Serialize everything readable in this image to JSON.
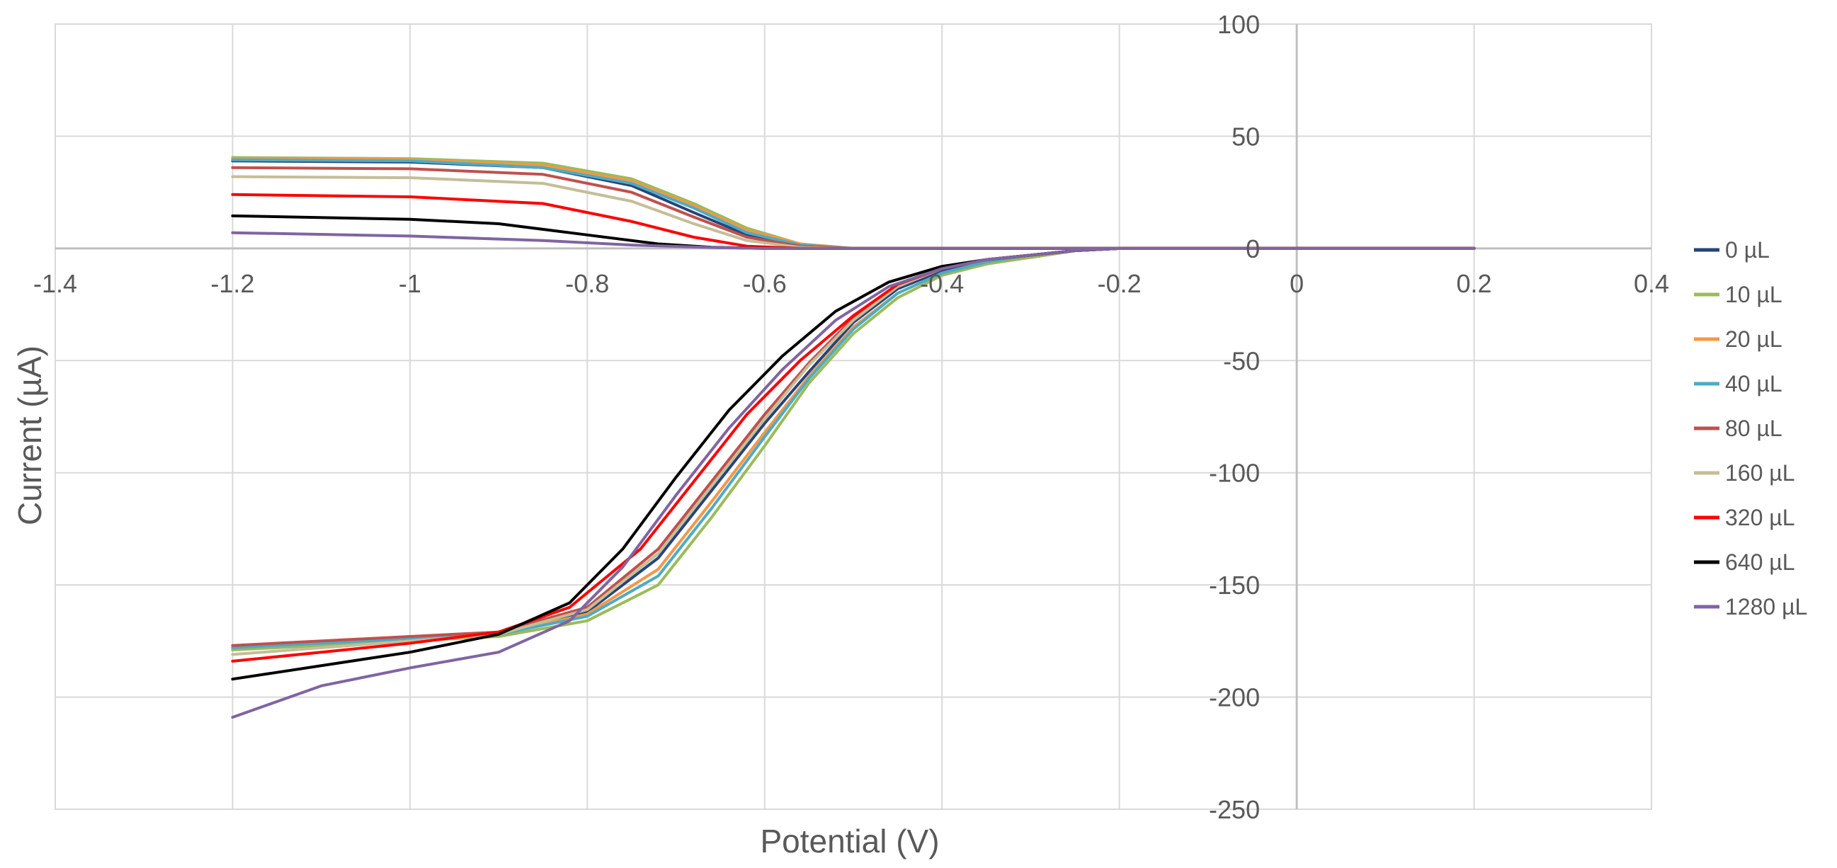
{
  "chart_data": {
    "type": "line",
    "title": "",
    "xlabel": "Potential (V)",
    "ylabel": "Current (µA)",
    "xlim": [
      -1.4,
      0.4
    ],
    "ylim": [
      -250,
      100
    ],
    "x_ticks": [
      -1.4,
      -1.2,
      -1,
      -0.8,
      -0.6,
      -0.4,
      -0.2,
      0,
      0.2,
      0.4
    ],
    "x_tick_labels": [
      "-1.4",
      "-1.2",
      "-1",
      "-0.8",
      "-0.6",
      "-0.4",
      "-0.2",
      "0",
      "0.2",
      "0.4"
    ],
    "y_ticks": [
      100,
      50,
      0,
      -50,
      -100,
      -150,
      -200,
      -250
    ],
    "y_tick_labels": [
      "100",
      "50",
      "0",
      "-50",
      "-100",
      "-150",
      "-200",
      "-250"
    ],
    "grid": true,
    "legend_position": "right",
    "series": [
      {
        "name": "0 µL",
        "color": "#264478",
        "upper": [
          [
            -1.2,
            39
          ],
          [
            -1.0,
            38.5
          ],
          [
            -0.85,
            36
          ],
          [
            -0.75,
            28
          ],
          [
            -0.68,
            16
          ],
          [
            -0.62,
            6
          ],
          [
            -0.56,
            1
          ],
          [
            -0.5,
            0
          ],
          [
            0.2,
            0
          ]
        ],
        "lower": [
          [
            -1.2,
            -178
          ],
          [
            -1.0,
            -174
          ],
          [
            -0.9,
            -172
          ],
          [
            -0.8,
            -162
          ],
          [
            -0.72,
            -138
          ],
          [
            -0.66,
            -108
          ],
          [
            -0.6,
            -78
          ],
          [
            -0.55,
            -55
          ],
          [
            -0.5,
            -33
          ],
          [
            -0.45,
            -18
          ],
          [
            -0.4,
            -10
          ],
          [
            -0.35,
            -6
          ],
          [
            -0.3,
            -4
          ],
          [
            -0.25,
            -1
          ],
          [
            -0.2,
            0
          ],
          [
            0.2,
            0
          ]
        ]
      },
      {
        "name": "10 µL",
        "color": "#9BBB59",
        "upper": [
          [
            -1.2,
            40.5
          ],
          [
            -1.0,
            40
          ],
          [
            -0.85,
            38
          ],
          [
            -0.75,
            31
          ],
          [
            -0.68,
            20
          ],
          [
            -0.62,
            9
          ],
          [
            -0.56,
            2
          ],
          [
            -0.5,
            0
          ],
          [
            0.2,
            0
          ]
        ],
        "lower": [
          [
            -1.2,
            -179
          ],
          [
            -1.0,
            -175
          ],
          [
            -0.9,
            -173
          ],
          [
            -0.8,
            -166
          ],
          [
            -0.72,
            -150
          ],
          [
            -0.66,
            -120
          ],
          [
            -0.6,
            -88
          ],
          [
            -0.55,
            -60
          ],
          [
            -0.5,
            -38
          ],
          [
            -0.45,
            -22
          ],
          [
            -0.4,
            -12
          ],
          [
            -0.35,
            -7
          ],
          [
            -0.3,
            -4
          ],
          [
            -0.25,
            -1
          ],
          [
            -0.2,
            0
          ],
          [
            0.2,
            0
          ]
        ]
      },
      {
        "name": "20 µL",
        "color": "#F79646",
        "upper": [
          [
            -1.2,
            40
          ],
          [
            -1.0,
            39.5
          ],
          [
            -0.85,
            37
          ],
          [
            -0.75,
            30
          ],
          [
            -0.68,
            19
          ],
          [
            -0.62,
            8
          ],
          [
            -0.56,
            2
          ],
          [
            -0.5,
            0
          ],
          [
            0.2,
            0
          ]
        ],
        "lower": [
          [
            -1.2,
            -178
          ],
          [
            -1.0,
            -174
          ],
          [
            -0.9,
            -172
          ],
          [
            -0.8,
            -163
          ],
          [
            -0.72,
            -143
          ],
          [
            -0.66,
            -113
          ],
          [
            -0.6,
            -82
          ],
          [
            -0.55,
            -57
          ],
          [
            -0.5,
            -35
          ],
          [
            -0.45,
            -20
          ],
          [
            -0.4,
            -11
          ],
          [
            -0.35,
            -6
          ],
          [
            -0.3,
            -3
          ],
          [
            -0.25,
            -1
          ],
          [
            -0.2,
            0
          ],
          [
            0.2,
            0
          ]
        ]
      },
      {
        "name": "40 µL",
        "color": "#4BACC6",
        "upper": [
          [
            -1.2,
            39.5
          ],
          [
            -1.0,
            39
          ],
          [
            -0.85,
            36
          ],
          [
            -0.75,
            29
          ],
          [
            -0.68,
            18
          ],
          [
            -0.62,
            7
          ],
          [
            -0.56,
            1.5
          ],
          [
            -0.5,
            0
          ],
          [
            0.2,
            0
          ]
        ],
        "lower": [
          [
            -1.2,
            -178
          ],
          [
            -1.0,
            -174
          ],
          [
            -0.9,
            -172
          ],
          [
            -0.8,
            -164
          ],
          [
            -0.72,
            -146
          ],
          [
            -0.66,
            -116
          ],
          [
            -0.6,
            -84
          ],
          [
            -0.55,
            -58
          ],
          [
            -0.5,
            -36
          ],
          [
            -0.45,
            -20
          ],
          [
            -0.4,
            -11
          ],
          [
            -0.35,
            -6
          ],
          [
            -0.3,
            -3
          ],
          [
            -0.25,
            -1
          ],
          [
            -0.2,
            0
          ],
          [
            0.2,
            0
          ]
        ]
      },
      {
        "name": "80 µL",
        "color": "#C0504D",
        "upper": [
          [
            -1.2,
            36
          ],
          [
            -1.0,
            35.5
          ],
          [
            -0.85,
            33
          ],
          [
            -0.75,
            25
          ],
          [
            -0.68,
            14
          ],
          [
            -0.62,
            5
          ],
          [
            -0.56,
            1
          ],
          [
            -0.5,
            0
          ],
          [
            0.2,
            0
          ]
        ],
        "lower": [
          [
            -1.2,
            -177
          ],
          [
            -1.0,
            -173
          ],
          [
            -0.9,
            -171
          ],
          [
            -0.8,
            -160
          ],
          [
            -0.72,
            -134
          ],
          [
            -0.66,
            -104
          ],
          [
            -0.6,
            -74
          ],
          [
            -0.55,
            -51
          ],
          [
            -0.5,
            -31
          ],
          [
            -0.45,
            -17
          ],
          [
            -0.4,
            -9
          ],
          [
            -0.35,
            -5
          ],
          [
            -0.3,
            -3
          ],
          [
            -0.25,
            -1
          ],
          [
            -0.2,
            0
          ],
          [
            0.2,
            0
          ]
        ]
      },
      {
        "name": "160 µL",
        "color": "#C4BD97",
        "upper": [
          [
            -1.2,
            32
          ],
          [
            -1.0,
            31.5
          ],
          [
            -0.85,
            29
          ],
          [
            -0.75,
            21
          ],
          [
            -0.68,
            11
          ],
          [
            -0.62,
            3.5
          ],
          [
            -0.56,
            0.5
          ],
          [
            -0.5,
            0
          ],
          [
            0.2,
            0
          ]
        ],
        "lower": [
          [
            -1.2,
            -181
          ],
          [
            -1.0,
            -175
          ],
          [
            -0.9,
            -172
          ],
          [
            -0.8,
            -161
          ],
          [
            -0.72,
            -136
          ],
          [
            -0.66,
            -106
          ],
          [
            -0.6,
            -76
          ],
          [
            -0.55,
            -52
          ],
          [
            -0.5,
            -32
          ],
          [
            -0.45,
            -17
          ],
          [
            -0.4,
            -9
          ],
          [
            -0.35,
            -5
          ],
          [
            -0.3,
            -3
          ],
          [
            -0.25,
            -1
          ],
          [
            -0.2,
            0
          ],
          [
            0.2,
            0
          ]
        ]
      },
      {
        "name": "320 µL",
        "color": "#FF0000",
        "upper": [
          [
            -1.2,
            24
          ],
          [
            -1.0,
            23
          ],
          [
            -0.85,
            20
          ],
          [
            -0.75,
            12
          ],
          [
            -0.68,
            5
          ],
          [
            -0.62,
            1
          ],
          [
            -0.56,
            0
          ],
          [
            0.2,
            0
          ]
        ],
        "lower": [
          [
            -1.2,
            -184
          ],
          [
            -1.0,
            -176
          ],
          [
            -0.9,
            -171
          ],
          [
            -0.82,
            -160
          ],
          [
            -0.74,
            -134
          ],
          [
            -0.68,
            -104
          ],
          [
            -0.62,
            -74
          ],
          [
            -0.56,
            -50
          ],
          [
            -0.5,
            -30
          ],
          [
            -0.45,
            -16
          ],
          [
            -0.4,
            -9
          ],
          [
            -0.35,
            -5
          ],
          [
            -0.3,
            -3
          ],
          [
            -0.25,
            -1
          ],
          [
            -0.2,
            0
          ],
          [
            0.2,
            0
          ]
        ]
      },
      {
        "name": "640 µL",
        "color": "#000000",
        "upper": [
          [
            -1.2,
            14.5
          ],
          [
            -1.0,
            13
          ],
          [
            -0.9,
            11
          ],
          [
            -0.8,
            6
          ],
          [
            -0.72,
            2
          ],
          [
            -0.66,
            0.5
          ],
          [
            -0.6,
            0
          ],
          [
            0.2,
            0
          ]
        ],
        "lower": [
          [
            -1.2,
            -192
          ],
          [
            -1.0,
            -180
          ],
          [
            -0.9,
            -172
          ],
          [
            -0.82,
            -158
          ],
          [
            -0.76,
            -134
          ],
          [
            -0.7,
            -102
          ],
          [
            -0.64,
            -72
          ],
          [
            -0.58,
            -48
          ],
          [
            -0.52,
            -28
          ],
          [
            -0.46,
            -15
          ],
          [
            -0.4,
            -8
          ],
          [
            -0.35,
            -5
          ],
          [
            -0.3,
            -3
          ],
          [
            -0.25,
            -1
          ],
          [
            -0.2,
            0
          ],
          [
            0.2,
            0
          ]
        ]
      },
      {
        "name": "1280 µL",
        "color": "#8064A2",
        "upper": [
          [
            -1.2,
            7
          ],
          [
            -1.0,
            5.5
          ],
          [
            -0.85,
            3.5
          ],
          [
            -0.75,
            1.5
          ],
          [
            -0.65,
            0.3
          ],
          [
            -0.6,
            0
          ],
          [
            0.2,
            0
          ]
        ],
        "lower": [
          [
            -1.2,
            -209
          ],
          [
            -1.1,
            -195
          ],
          [
            -1.0,
            -187
          ],
          [
            -0.9,
            -180
          ],
          [
            -0.82,
            -166
          ],
          [
            -0.76,
            -142
          ],
          [
            -0.7,
            -110
          ],
          [
            -0.64,
            -80
          ],
          [
            -0.58,
            -54
          ],
          [
            -0.52,
            -32
          ],
          [
            -0.46,
            -17
          ],
          [
            -0.4,
            -9
          ],
          [
            -0.35,
            -5
          ],
          [
            -0.3,
            -3
          ],
          [
            -0.25,
            -1
          ],
          [
            -0.2,
            0
          ],
          [
            0.2,
            0
          ]
        ]
      }
    ]
  }
}
